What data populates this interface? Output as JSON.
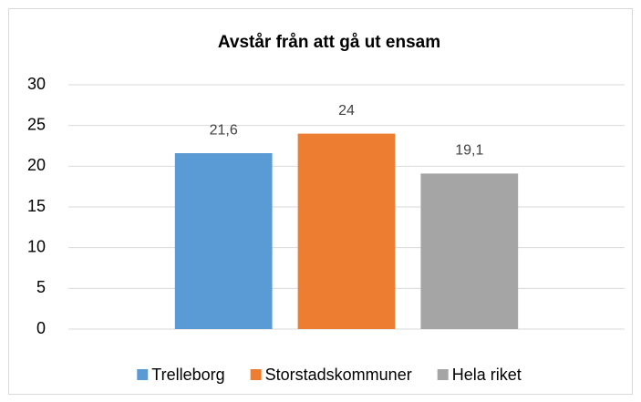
{
  "chart_data": {
    "type": "bar",
    "title": "Avstår från att gå ut ensam",
    "categories": [
      null
    ],
    "series": [
      {
        "name": "Trelleborg",
        "color": "#5b9bd5",
        "values": [
          21.6
        ],
        "value_labels": [
          "21,6"
        ]
      },
      {
        "name": "Storstadskommuner",
        "color": "#ed7d31",
        "values": [
          24
        ],
        "value_labels": [
          "24"
        ]
      },
      {
        "name": "Hela riket",
        "color": "#a5a5a5",
        "values": [
          19.1
        ],
        "value_labels": [
          "19,1"
        ]
      }
    ],
    "ylim": [
      0,
      30
    ],
    "yticks": [
      0,
      5,
      10,
      15,
      20,
      25,
      30
    ],
    "grid": true,
    "legend": "bottom"
  }
}
